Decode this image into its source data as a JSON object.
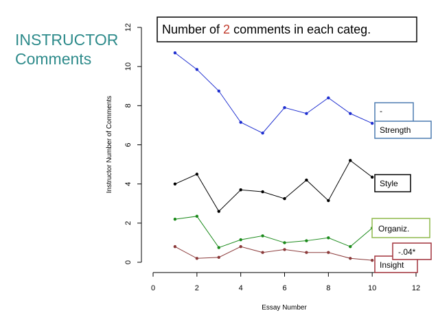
{
  "slide": {
    "heading_line1": "INSTRUCTOR",
    "heading_line2": "Comments",
    "heading_color": "#2e8b8b"
  },
  "chart_data": {
    "type": "line",
    "title_prefix": "Number of ",
    "title_highlight": "2",
    "title_suffix": " comments in each categ.",
    "title_highlight_color": "#c0392b",
    "xlabel": "Essay Number",
    "ylabel": "Instructor Number of Comments",
    "xlim": [
      0,
      12
    ],
    "ylim": [
      0,
      12
    ],
    "xticks": [
      0,
      2,
      4,
      6,
      8,
      10,
      12
    ],
    "yticks": [
      0,
      2,
      4,
      6,
      8,
      10,
      12
    ],
    "grid": false,
    "x": [
      1,
      2,
      3,
      4,
      5,
      6,
      7,
      8,
      9,
      10
    ],
    "series": [
      {
        "name": "Strength",
        "color": "#1f2fd0",
        "values": [
          10.7,
          9.85,
          8.75,
          7.15,
          6.6,
          7.9,
          7.6,
          8.4,
          7.6,
          7.1
        ]
      },
      {
        "name": "Style",
        "color": "#000000",
        "values": [
          4.0,
          4.5,
          2.6,
          3.7,
          3.6,
          3.25,
          4.2,
          3.15,
          5.2,
          4.35
        ]
      },
      {
        "name": "Organiz.",
        "color": "#1a8a1a",
        "values": [
          2.2,
          2.35,
          0.75,
          1.15,
          1.35,
          1.0,
          1.1,
          1.25,
          0.8,
          1.75
        ]
      },
      {
        "name": "Insight",
        "color": "#8b3a3a",
        "values": [
          0.8,
          0.2,
          0.25,
          0.8,
          0.5,
          0.65,
          0.5,
          0.5,
          0.2,
          0.1
        ]
      }
    ],
    "callouts": [
      {
        "id": "strength-dash",
        "text": "-",
        "border": "#4a7ab0"
      },
      {
        "id": "strength",
        "text": "Strength",
        "border": "#4a7ab0"
      },
      {
        "id": "style",
        "text": "Style",
        "border": "#000000"
      },
      {
        "id": "organiz",
        "text": "Organiz.",
        "border": "#8db84a"
      },
      {
        "id": "insight-stat",
        "text": "-.04*",
        "border": "#a0303a"
      },
      {
        "id": "insight",
        "text": "Insight",
        "border": "#a0303a"
      }
    ]
  }
}
